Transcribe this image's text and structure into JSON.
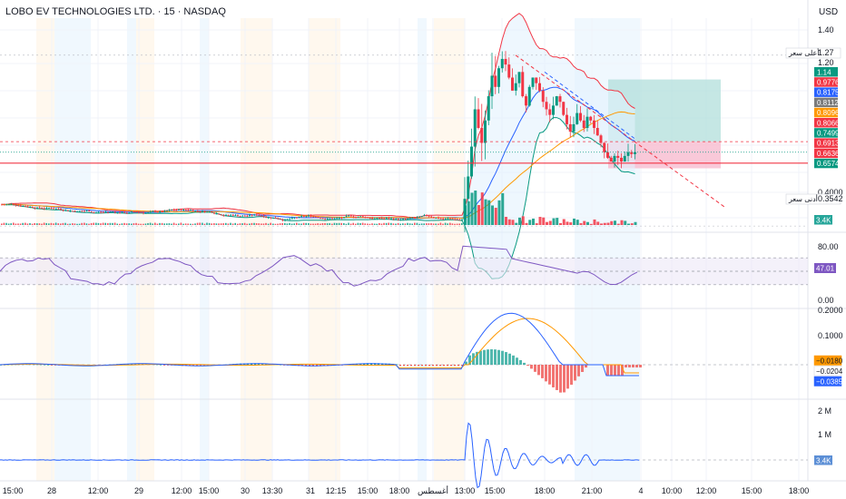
{
  "header": {
    "symbol": "LOBO EV TECHNOLOGIES LTD.",
    "interval": "15",
    "exchange": "NASDAQ",
    "title": "LOBO EV TECHNOLOGIES LTD. · 15 · NASDAQ",
    "currency": "USD"
  },
  "colors": {
    "up": "#089981",
    "down": "#f23645",
    "bb_upper": "#f23645",
    "bb_middle": "#2962ff",
    "bb_lower": "#089981",
    "ema": "#ff9800",
    "rsi_line": "#7e57c2",
    "macd_line": "#2962ff",
    "signal_line": "#ff9800",
    "session_pre": "#fff3e0",
    "session_post": "#e3f2fd",
    "target_zone": "#b2dfdb",
    "stop_zone": "#f8bbd0"
  },
  "x_axis": {
    "labels": [
      "15:00",
      "28",
      "12:00",
      "29",
      "12:00",
      "15:00",
      "30",
      "13:30",
      "31",
      "12:15",
      "15:00",
      "18:00",
      "أغسطس",
      "13:00",
      "15:00",
      "18:00",
      "21:00",
      "4",
      "10:00",
      "12:00",
      "15:00",
      "18:00"
    ]
  },
  "price_axis": {
    "ticks": [
      "1.40",
      "1.20",
      "0.4000"
    ],
    "high_label": "أعلى سعر",
    "high_value": "1.27",
    "low_label": "أدنى سعر",
    "low_value": "0.3542",
    "badges": [
      {
        "value": "1.14",
        "color": "#089981"
      },
      {
        "value": "0.9776",
        "color": "#f23645"
      },
      {
        "value": "0.8175",
        "color": "#2962ff"
      },
      {
        "value": "0.8112",
        "color": "#7b7b7b"
      },
      {
        "value": "0.8096",
        "color": "#ff9800"
      },
      {
        "value": "0.8066",
        "color": "#f23645"
      },
      {
        "value": "0.7499",
        "color": "#089981"
      },
      {
        "value": "0.6913",
        "color": "#f23645"
      },
      {
        "value": "0.6636",
        "color": "#f23645"
      },
      {
        "value": "0.6574",
        "color": "#089981"
      }
    ],
    "volume_badge": "3.4K"
  },
  "rsi": {
    "ticks": [
      "80.00",
      "0.00"
    ],
    "value": "47.01",
    "upper_band": 70,
    "lower_band": 30
  },
  "macd": {
    "ticks": [
      "0.2000",
      "0.1000"
    ],
    "badges": [
      {
        "value": "−0.0180",
        "color": "#ff9800"
      },
      {
        "value": "−0.0204",
        "color": "#ffffff"
      },
      {
        "value": "−0.0385",
        "color": "#2962ff"
      }
    ]
  },
  "volume_osc": {
    "ticks": [
      "2 M",
      "1 M"
    ],
    "value": "3.4K"
  },
  "chart_data": {
    "type": "candlestick",
    "title": "LOBO EV TECHNOLOGIES LTD. · 15 · NASDAQ",
    "ylabel": "USD",
    "ylim": [
      0.35,
      1.42
    ],
    "grid": true,
    "x": [
      "28",
      "29",
      "30",
      "31",
      "أغسطس 13:00",
      "15:00",
      "18:00",
      "21:00",
      "4"
    ],
    "close": [
      0.46,
      0.45,
      0.44,
      0.43,
      0.98,
      1.25,
      1.08,
      0.85,
      0.75
    ],
    "high": [
      0.49,
      0.48,
      0.47,
      0.46,
      1.16,
      1.27,
      1.15,
      0.95,
      0.81
    ],
    "low": [
      0.43,
      0.42,
      0.41,
      0.4,
      0.43,
      0.95,
      0.92,
      0.7,
      0.66
    ],
    "position": {
      "target": 1.14,
      "entry": 0.8066,
      "stop": 0.6636
    },
    "horizontal_line": 0.6913
  }
}
